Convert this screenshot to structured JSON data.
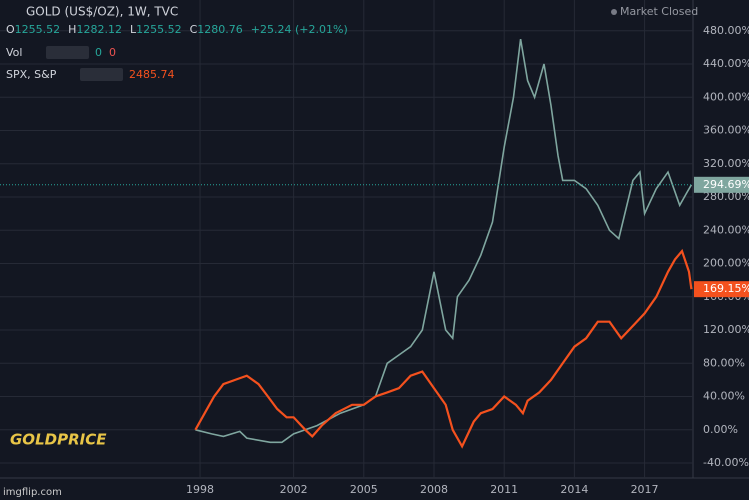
{
  "header": {
    "symbol": "GOLD (US$/OZ), 1W, TVC",
    "market_status": "Market Closed",
    "ohlc": [
      {
        "key": "O",
        "value": "1255.52"
      },
      {
        "key": "H",
        "value": "1282.12"
      },
      {
        "key": "L",
        "value": "1255.52"
      },
      {
        "key": "C",
        "value": "1280.76"
      }
    ],
    "change": "+25.24 (+2.01%)",
    "vol": {
      "label": "Vol",
      "values": [
        "0",
        "0"
      ]
    },
    "compare": {
      "label": "SPX, S&P",
      "value": "2485.74"
    }
  },
  "logo": "GOLDPRICE",
  "watermark": "imgflip.com",
  "chart_data": {
    "type": "line",
    "xlim": [
      1989.45,
      2019.07
    ],
    "xticks": [
      1998,
      2002,
      2005,
      2008,
      2011,
      2014,
      2017
    ],
    "ylim": [
      -58,
      517
    ],
    "yticks": [
      {
        "value": -40,
        "label": "-40.00%"
      },
      {
        "value": 0,
        "label": "0.00%"
      },
      {
        "value": 40,
        "label": "40.00%"
      },
      {
        "value": 80,
        "label": "80.00%"
      },
      {
        "value": 120,
        "label": "120.00%"
      },
      {
        "value": 160,
        "label": "160.00%"
      },
      {
        "value": 200,
        "label": "200.00%"
      },
      {
        "value": 240,
        "label": "240.00%"
      },
      {
        "value": 280,
        "label": "280.00%"
      },
      {
        "value": 320,
        "label": "320.00%"
      },
      {
        "value": 360,
        "label": "360.00%"
      },
      {
        "value": 400,
        "label": "400.00%"
      },
      {
        "value": 440,
        "label": "440.00%"
      },
      {
        "value": 480,
        "label": "480.00%"
      }
    ],
    "grid": true,
    "series": [
      {
        "name": "GOLD",
        "color": "#7fa69f",
        "last_value_label": "294.69%",
        "x": [
          1997.8,
          1998.5,
          1999,
          1999.7,
          2000,
          2001,
          2001.5,
          2002,
          2003,
          2004,
          2005,
          2005.5,
          2006,
          2006.5,
          2007,
          2007.5,
          2008,
          2008.5,
          2008.8,
          2009,
          2009.5,
          2010,
          2010.5,
          2011,
          2011.4,
          2011.7,
          2012,
          2012.3,
          2012.7,
          2013,
          2013.3,
          2013.5,
          2014,
          2014.5,
          2015,
          2015.5,
          2015.9,
          2016.5,
          2016.8,
          2017,
          2017.5,
          2018,
          2018.5,
          2018.8,
          2019
        ],
        "values": [
          0,
          -5,
          -8,
          -2,
          -10,
          -15,
          -15,
          -5,
          5,
          20,
          30,
          40,
          80,
          90,
          100,
          120,
          190,
          120,
          110,
          160,
          180,
          210,
          250,
          340,
          400,
          470,
          420,
          400,
          440,
          390,
          330,
          300,
          300,
          290,
          270,
          240,
          230,
          300,
          310,
          260,
          290,
          310,
          270,
          285,
          294.69
        ]
      },
      {
        "name": "SPX",
        "color": "#f4511e",
        "last_value_label": "169.15%",
        "x": [
          1997.8,
          1998.2,
          1998.6,
          1999,
          1999.5,
          2000,
          2000.5,
          2000.9,
          2001.3,
          2001.7,
          2002,
          2002.5,
          2002.8,
          2003.2,
          2003.8,
          2004.5,
          2005,
          2005.5,
          2006,
          2006.5,
          2007,
          2007.5,
          2008,
          2008.5,
          2008.8,
          2009.2,
          2009.7,
          2010,
          2010.5,
          2011,
          2011.5,
          2011.8,
          2012,
          2012.5,
          2013,
          2013.5,
          2014,
          2014.5,
          2015,
          2015.5,
          2016,
          2016.5,
          2017,
          2017.5,
          2018,
          2018.3,
          2018.6,
          2018.9,
          2019
        ],
        "values": [
          0,
          20,
          40,
          55,
          60,
          65,
          55,
          40,
          25,
          15,
          15,
          0,
          -8,
          5,
          20,
          30,
          30,
          40,
          45,
          50,
          65,
          70,
          50,
          30,
          0,
          -20,
          10,
          20,
          25,
          40,
          30,
          20,
          35,
          45,
          60,
          80,
          100,
          110,
          130,
          130,
          110,
          125,
          140,
          160,
          190,
          205,
          215,
          190,
          169.15
        ]
      }
    ]
  }
}
